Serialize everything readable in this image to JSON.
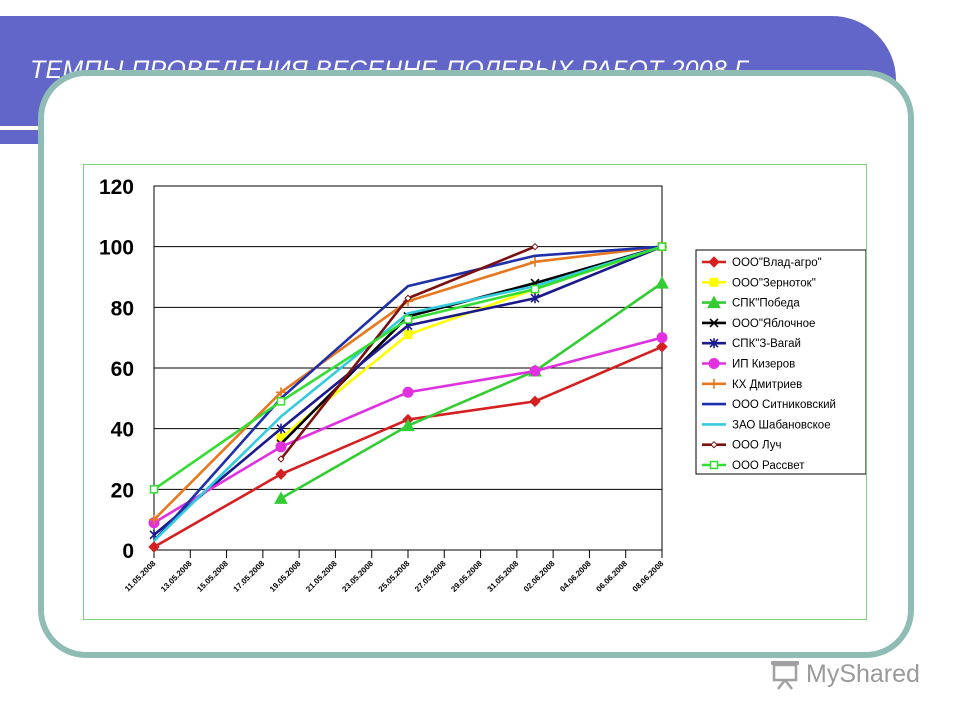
{
  "header": {
    "title": "ТЕМПЫ ПРОВЕДЕНИЯ ВЕСЕННЕ-ПОЛЕВЫХ РАБОТ 2008 Г"
  },
  "branding": {
    "logo_text": "MyShared",
    "logo_icon": "projector-screen-icon"
  },
  "colors": {
    "banner": "#6166c8",
    "frame": "#8fbcb4",
    "chart_border": "#7ed37e"
  },
  "chart_data": {
    "type": "line",
    "title": "",
    "xlabel": "",
    "ylabel": "",
    "ylim": [
      0,
      120
    ],
    "yticks": [
      "0",
      "20",
      "40",
      "60",
      "80",
      "100",
      "120"
    ],
    "categories": [
      "11.05.2008",
      "13.05.2008",
      "15.05.2008",
      "17.05.2008",
      "19.05.2008",
      "21.05.2008",
      "23.05.2008",
      "25.05.2008",
      "27.05.2008",
      "29.05.2008",
      "31.05.2008",
      "02.06.2008",
      "04.06.2008",
      "06.06.2008",
      "08.06.2008"
    ],
    "grid": true,
    "legend_position": "right",
    "series": [
      {
        "name": "ООО\"Влад-агро\"",
        "color": "#d42020",
        "marker": "diamond",
        "points": [
          [
            0,
            1
          ],
          [
            3.5,
            25
          ],
          [
            7,
            43
          ],
          [
            10.5,
            49
          ],
          [
            14,
            67
          ]
        ]
      },
      {
        "name": "ООО\"Зерноток\"",
        "color": "#ffff00",
        "marker": "square",
        "points": [
          [
            3.5,
            37
          ],
          [
            7,
            71
          ],
          [
            10.5,
            86
          ],
          [
            14,
            100
          ]
        ]
      },
      {
        "name": "СПК\"Победа",
        "color": "#33cc33",
        "marker": "triangle",
        "points": [
          [
            3.5,
            17
          ],
          [
            7,
            41
          ],
          [
            10.5,
            59
          ],
          [
            14,
            88
          ]
        ]
      },
      {
        "name": "ООО\"Яблочное",
        "color": "#000000",
        "marker": "x",
        "points": [
          [
            3.5,
            35
          ],
          [
            7,
            77
          ],
          [
            10.5,
            88
          ],
          [
            14,
            100
          ]
        ]
      },
      {
        "name": "СПК\"З-Вагай",
        "color": "#1a1a8c",
        "marker": "star",
        "points": [
          [
            0,
            5
          ],
          [
            3.5,
            40
          ],
          [
            7,
            74
          ],
          [
            10.5,
            83
          ],
          [
            14,
            100
          ]
        ]
      },
      {
        "name": "ИП Кизеров",
        "color": "#e030e0",
        "marker": "circle",
        "points": [
          [
            0,
            9
          ],
          [
            3.5,
            34
          ],
          [
            7,
            52
          ],
          [
            10.5,
            59
          ],
          [
            14,
            70
          ]
        ]
      },
      {
        "name": "КХ Дмитриев",
        "color": "#e87820",
        "marker": "plus",
        "points": [
          [
            0,
            10
          ],
          [
            3.5,
            52
          ],
          [
            7,
            82
          ],
          [
            10.5,
            95
          ],
          [
            14,
            100
          ]
        ]
      },
      {
        "name": "ООО Ситниковский",
        "color": "#1f2fa8",
        "marker": "none",
        "points": [
          [
            0,
            3
          ],
          [
            3.5,
            50
          ],
          [
            7,
            87
          ],
          [
            10.5,
            97
          ],
          [
            14,
            100
          ]
        ]
      },
      {
        "name": "ЗАО Шабановское",
        "color": "#33ccdd",
        "marker": "none",
        "points": [
          [
            0,
            3
          ],
          [
            3.5,
            44
          ],
          [
            7,
            78
          ],
          [
            10.5,
            87
          ],
          [
            14,
            100
          ]
        ]
      },
      {
        "name": "ООО Луч",
        "color": "#7a1010",
        "marker": "small-diamond",
        "points": [
          [
            3.5,
            30
          ],
          [
            7,
            83
          ],
          [
            10.5,
            100
          ]
        ]
      },
      {
        "name": "ООО Рассвет",
        "color": "#33dd33",
        "marker": "open-square",
        "points": [
          [
            0,
            20
          ],
          [
            3.5,
            49
          ],
          [
            7,
            76
          ],
          [
            10.5,
            86
          ],
          [
            14,
            100
          ]
        ]
      }
    ]
  }
}
